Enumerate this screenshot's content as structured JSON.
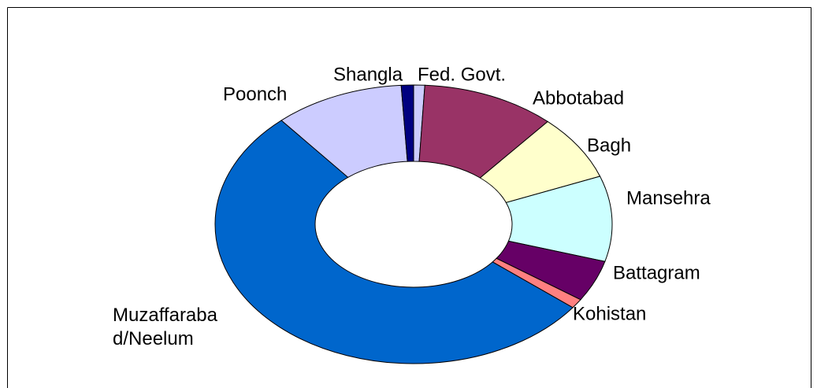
{
  "chart_data": {
    "type": "donut",
    "categories": [
      "Fed. Govt.",
      "Abbotabad",
      "Bagh",
      "Mansehra",
      "Battagram",
      "Kohistan",
      "Muzaffarabad/Neelum",
      "Poonch",
      "Shangla"
    ],
    "values": [
      0.9,
      10.9,
      7.6,
      9.9,
      4.8,
      1.1,
      53.2,
      10.6,
      1.0
    ],
    "colors": [
      "#ccccff",
      "#993366",
      "#ffffcc",
      "#ccffff",
      "#660066",
      "#ff8080",
      "#0066cc",
      "#ccccff",
      "#000080"
    ]
  }
}
